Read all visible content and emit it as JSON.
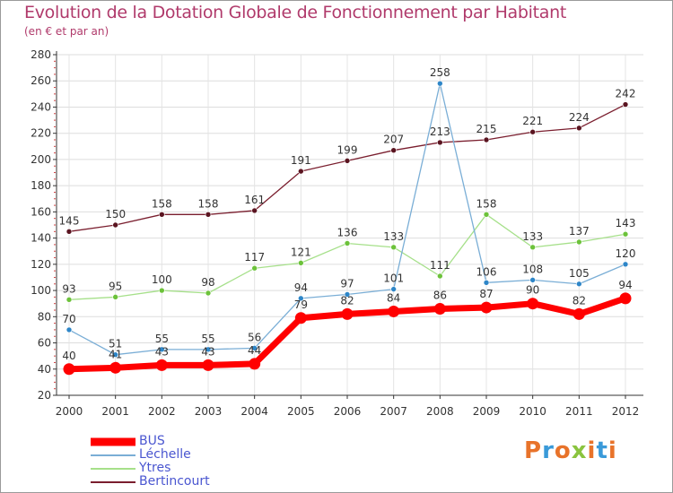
{
  "title": "Evolution de la Dotation Globale de Fonctionnement par Habitant",
  "subtitle": "(en € et par an)",
  "logo": {
    "text": "Proxiti",
    "colors": [
      "#e8732a",
      "#3a9ad9",
      "#e8732a",
      "#8ac43f",
      "#e8732a",
      "#3a9ad9",
      "#e8732a"
    ]
  },
  "chart_data": {
    "type": "line",
    "title": "Evolution de la Dotation Globale de Fonctionnement par Habitant",
    "subtitle": "(en € et par an)",
    "x": [
      "2000",
      "2001",
      "2002",
      "2003",
      "2004",
      "2005",
      "2006",
      "2007",
      "2008",
      "2009",
      "2010",
      "2011",
      "2012"
    ],
    "ylim": [
      20,
      280
    ],
    "yticks": [
      20,
      40,
      60,
      80,
      100,
      120,
      140,
      160,
      180,
      200,
      220,
      240,
      260,
      280
    ],
    "grid": true,
    "legend_position": "bottom-left",
    "series": [
      {
        "name": "Bertincourt",
        "color": "#7a1e2e",
        "point_color": "#5a1420",
        "values": [
          145,
          150,
          158,
          158,
          161,
          191,
          199,
          207,
          213,
          215,
          221,
          224,
          242
        ]
      },
      {
        "name": "Ytres",
        "color": "#a6e08a",
        "point_color": "#6cc23a",
        "values": [
          93,
          95,
          100,
          98,
          117,
          121,
          136,
          133,
          111,
          158,
          133,
          137,
          143
        ]
      },
      {
        "name": "Léchelle",
        "color": "#7aaed6",
        "point_color": "#2e86c8",
        "values": [
          70,
          51,
          55,
          55,
          56,
          94,
          97,
          101,
          258,
          106,
          108,
          105,
          120
        ]
      },
      {
        "name": "BUS",
        "color": "#ff0000",
        "point_color": "#ff0000",
        "values": [
          40,
          41,
          43,
          43,
          44,
          79,
          82,
          84,
          86,
          87,
          90,
          82,
          94
        ]
      }
    ],
    "legend": [
      "BUS",
      "Léchelle",
      "Ytres",
      "Bertincourt"
    ]
  }
}
